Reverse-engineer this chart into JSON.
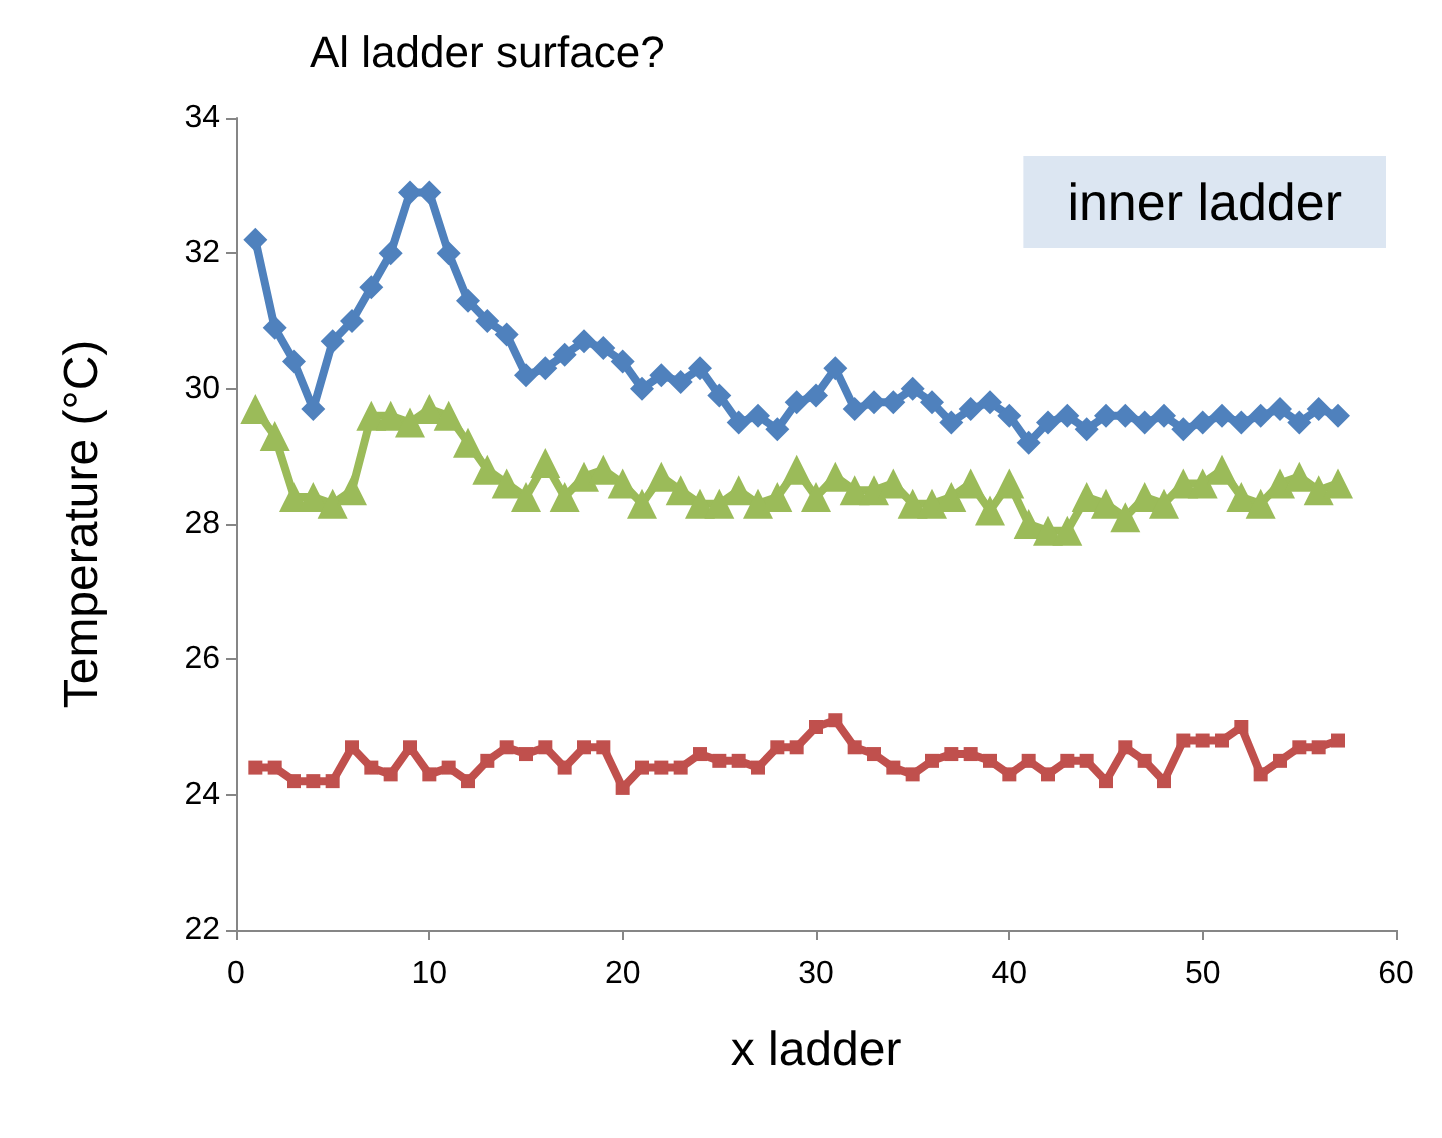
{
  "chart_data": {
    "type": "line",
    "title": "Al ladder surface?",
    "xlabel": "x ladder",
    "ylabel": "Temperature (°C)",
    "annotations": [
      "inner ladder"
    ],
    "x": [
      1,
      2,
      3,
      4,
      5,
      6,
      7,
      8,
      9,
      10,
      11,
      12,
      13,
      14,
      15,
      16,
      17,
      18,
      19,
      20,
      21,
      22,
      23,
      24,
      25,
      26,
      27,
      28,
      29,
      30,
      31,
      32,
      33,
      34,
      35,
      36,
      37,
      38,
      39,
      40,
      41,
      42,
      43,
      44,
      45,
      46,
      47,
      48,
      49,
      50,
      51,
      52,
      53,
      54,
      55,
      56,
      57
    ],
    "xlim": [
      0,
      60
    ],
    "xticks": [
      0,
      10,
      20,
      30,
      40,
      50,
      60
    ],
    "ylim": [
      22,
      34
    ],
    "yticks": [
      22,
      24,
      26,
      28,
      30,
      32,
      34
    ],
    "grid": false,
    "series": [
      {
        "color": "#4f81bd",
        "marker": "diamond",
        "values": [
          32.2,
          30.9,
          30.4,
          29.7,
          30.7,
          31.0,
          31.5,
          32.0,
          32.9,
          32.9,
          32.0,
          31.3,
          31.0,
          30.8,
          30.2,
          30.3,
          30.5,
          30.7,
          30.6,
          30.4,
          30.0,
          30.2,
          30.1,
          30.3,
          29.9,
          29.5,
          29.6,
          29.4,
          29.8,
          29.9,
          30.3,
          29.7,
          29.8,
          29.8,
          30.0,
          29.8,
          29.5,
          29.7,
          29.8,
          29.6,
          29.2,
          29.5,
          29.6,
          29.4,
          29.6,
          29.6,
          29.5,
          29.6,
          29.4,
          29.5,
          29.6,
          29.5,
          29.6,
          29.7,
          29.5,
          29.7,
          29.6
        ]
      },
      {
        "color": "#9bbb59",
        "marker": "triangle",
        "values": [
          29.7,
          29.3,
          28.4,
          28.4,
          28.3,
          28.5,
          29.6,
          29.6,
          29.5,
          29.7,
          29.6,
          29.2,
          28.8,
          28.6,
          28.4,
          28.9,
          28.4,
          28.7,
          28.8,
          28.6,
          28.3,
          28.7,
          28.5,
          28.3,
          28.3,
          28.5,
          28.3,
          28.4,
          28.8,
          28.4,
          28.7,
          28.5,
          28.5,
          28.6,
          28.3,
          28.3,
          28.4,
          28.6,
          28.2,
          28.6,
          28.0,
          27.9,
          27.9,
          28.4,
          28.3,
          28.1,
          28.4,
          28.3,
          28.6,
          28.6,
          28.8,
          28.4,
          28.3,
          28.6,
          28.7,
          28.5,
          28.6
        ]
      },
      {
        "color": "#c0504d",
        "marker": "square",
        "values": [
          24.4,
          24.4,
          24.2,
          24.2,
          24.2,
          24.7,
          24.4,
          24.3,
          24.7,
          24.3,
          24.4,
          24.2,
          24.5,
          24.7,
          24.6,
          24.7,
          24.4,
          24.7,
          24.7,
          24.1,
          24.4,
          24.4,
          24.4,
          24.6,
          24.5,
          24.5,
          24.4,
          24.7,
          24.7,
          25.0,
          25.1,
          24.7,
          24.6,
          24.4,
          24.3,
          24.5,
          24.6,
          24.6,
          24.5,
          24.3,
          24.5,
          24.3,
          24.5,
          24.5,
          24.2,
          24.7,
          24.5,
          24.2,
          24.8,
          24.8,
          24.8,
          25.0,
          24.3,
          24.5,
          24.7,
          24.7,
          24.8
        ]
      }
    ]
  }
}
